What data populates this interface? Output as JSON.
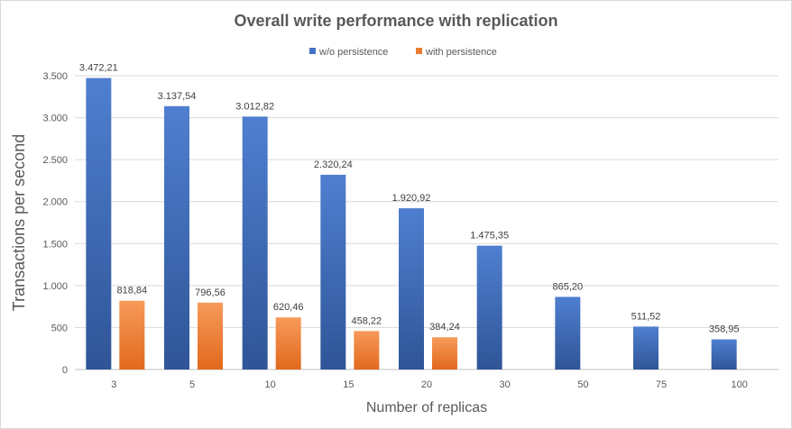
{
  "chart_data": {
    "type": "bar",
    "title": "Overall write performance  with replication",
    "xlabel": "Number of replicas",
    "ylabel": "Transactions per second",
    "categories": [
      "3",
      "5",
      "10",
      "15",
      "20",
      "30",
      "50",
      "75",
      "100"
    ],
    "series": [
      {
        "name": "w/o persistence",
        "values": [
          3472.21,
          3137.54,
          3012.82,
          2320.24,
          1920.92,
          1475.35,
          865.2,
          511.52,
          358.95
        ],
        "labels": [
          "3.472,21",
          "3.137,54",
          "3.012,82",
          "2.320,24",
          "1.920,92",
          "1.475,35",
          "865,20",
          "511,52",
          "358,95"
        ],
        "color": "#4472c4"
      },
      {
        "name": "with persistence",
        "values": [
          818.84,
          796.56,
          620.46,
          458.22,
          384.24,
          null,
          null,
          null,
          null
        ],
        "labels": [
          "818,84",
          "796,56",
          "620,46",
          "458,22",
          "384,24",
          "",
          "",
          "",
          ""
        ],
        "color": "#ed7d31"
      }
    ],
    "ylim": [
      0,
      3500
    ],
    "yticks": [
      0,
      500,
      1000,
      1500,
      2000,
      2500,
      3000,
      3500
    ],
    "ytick_labels": [
      "0",
      "500",
      "1.000",
      "1.500",
      "2.000",
      "2.500",
      "3.000",
      "3.500"
    ],
    "grid": true,
    "legend_position": "top-center"
  }
}
